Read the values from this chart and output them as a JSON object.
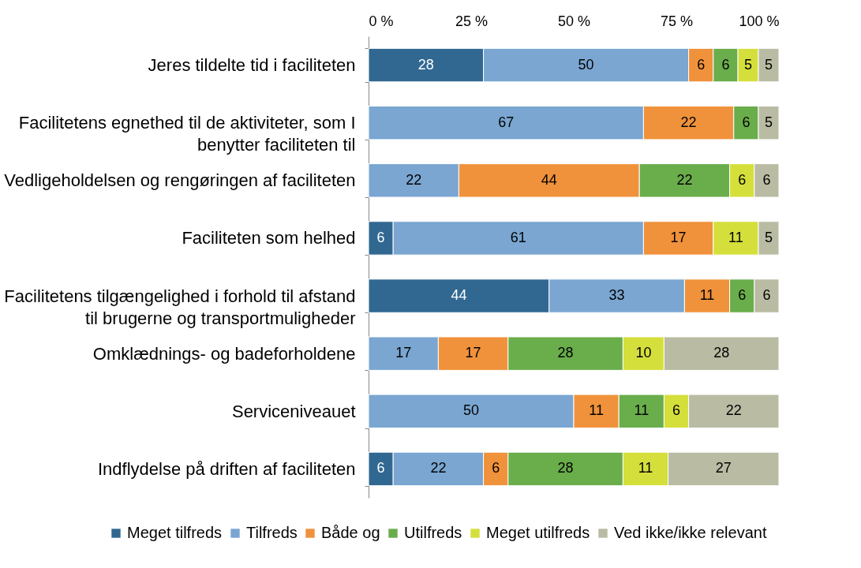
{
  "chart_data": {
    "type": "bar",
    "orientation": "horizontal",
    "stacked": true,
    "data_labels": true,
    "legend": "bottom",
    "grid": false,
    "categories": [
      "Jeres tildelte tid i faciliteten",
      "Facilitetens egnethed til de aktiviteter, som I benytter faciliteten til",
      "Vedligeholdelsen og rengøringen af faciliteten",
      "Faciliteten som helhed",
      "Facilitetens tilgængelighed i forhold til afstand til brugerne og transportmuligheder",
      "Omklædnings- og badeforholdene",
      "Serviceniveauet",
      "Indflydelse på driften af faciliteten"
    ],
    "xlim": [
      0,
      100
    ],
    "xticks": [
      {
        "value": 0,
        "label": "0 %"
      },
      {
        "value": 25,
        "label": "25 %"
      },
      {
        "value": 50,
        "label": "50 %"
      },
      {
        "value": 75,
        "label": "75 %"
      },
      {
        "value": 100,
        "label": "100 %"
      }
    ],
    "series": [
      {
        "name": "Meget tilfreds",
        "color": "#316891",
        "values": [
          28,
          null,
          null,
          6,
          44,
          null,
          null,
          6
        ]
      },
      {
        "name": "Tilfreds",
        "color": "#7aa6d1",
        "values": [
          50,
          67,
          22,
          61,
          33,
          17,
          50,
          22
        ]
      },
      {
        "name": "Både og",
        "color": "#f0923b",
        "values": [
          6,
          22,
          44,
          17,
          11,
          17,
          11,
          6
        ]
      },
      {
        "name": "Utilfreds",
        "color": "#6aad4b",
        "values": [
          6,
          6,
          22,
          null,
          6,
          28,
          11,
          28
        ]
      },
      {
        "name": "Meget utilfreds",
        "color": "#d5df3b",
        "values": [
          5,
          null,
          6,
          11,
          null,
          10,
          6,
          11
        ]
      },
      {
        "name": "Ved ikke/ikke relevant",
        "color": "#b9bca3",
        "values": [
          5,
          5,
          6,
          5,
          6,
          28,
          22,
          27
        ]
      }
    ]
  }
}
